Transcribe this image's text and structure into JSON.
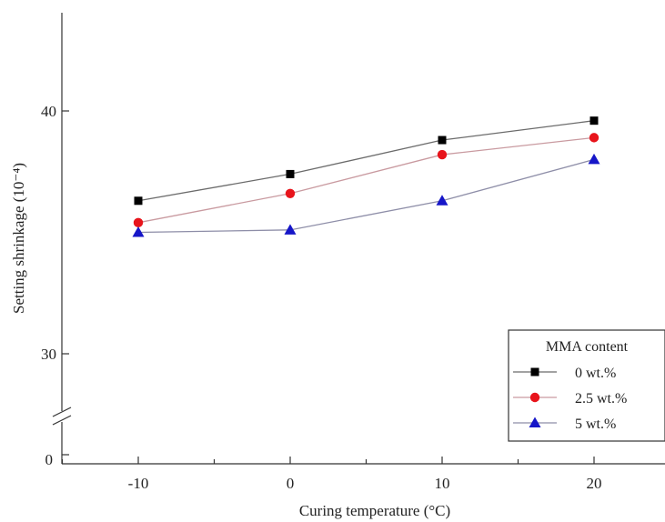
{
  "chart_data": {
    "type": "line",
    "xlabel": "Curing temperature (°C)",
    "ylabel": "Setting shrinkage (10⁻⁴)",
    "x": [
      -10,
      0,
      10,
      20
    ],
    "x_ticks": [
      "-10",
      "0",
      "10",
      "20"
    ],
    "xlim": [
      -15,
      25
    ],
    "y_ticks": [
      "0",
      "30",
      "40"
    ],
    "y_axis_break": true,
    "ylim_upper_segment": [
      28.7,
      44
    ],
    "legend": {
      "title": "MMA content",
      "placement": "bottom-right"
    },
    "series": [
      {
        "name": "0 wt.%",
        "marker": "square",
        "color": "#000000",
        "line_color": "#6b6b6b",
        "values": [
          36.3,
          37.4,
          38.8,
          39.6
        ]
      },
      {
        "name": "2.5 wt.%",
        "marker": "circle",
        "color": "#e8141b",
        "line_color": "#c99aa0",
        "values": [
          35.4,
          36.6,
          38.2,
          38.9
        ]
      },
      {
        "name": "5 wt.%",
        "marker": "triangle",
        "color": "#1616c8",
        "line_color": "#8e8ea8",
        "values": [
          35.0,
          35.1,
          36.3,
          38.0
        ]
      }
    ]
  }
}
